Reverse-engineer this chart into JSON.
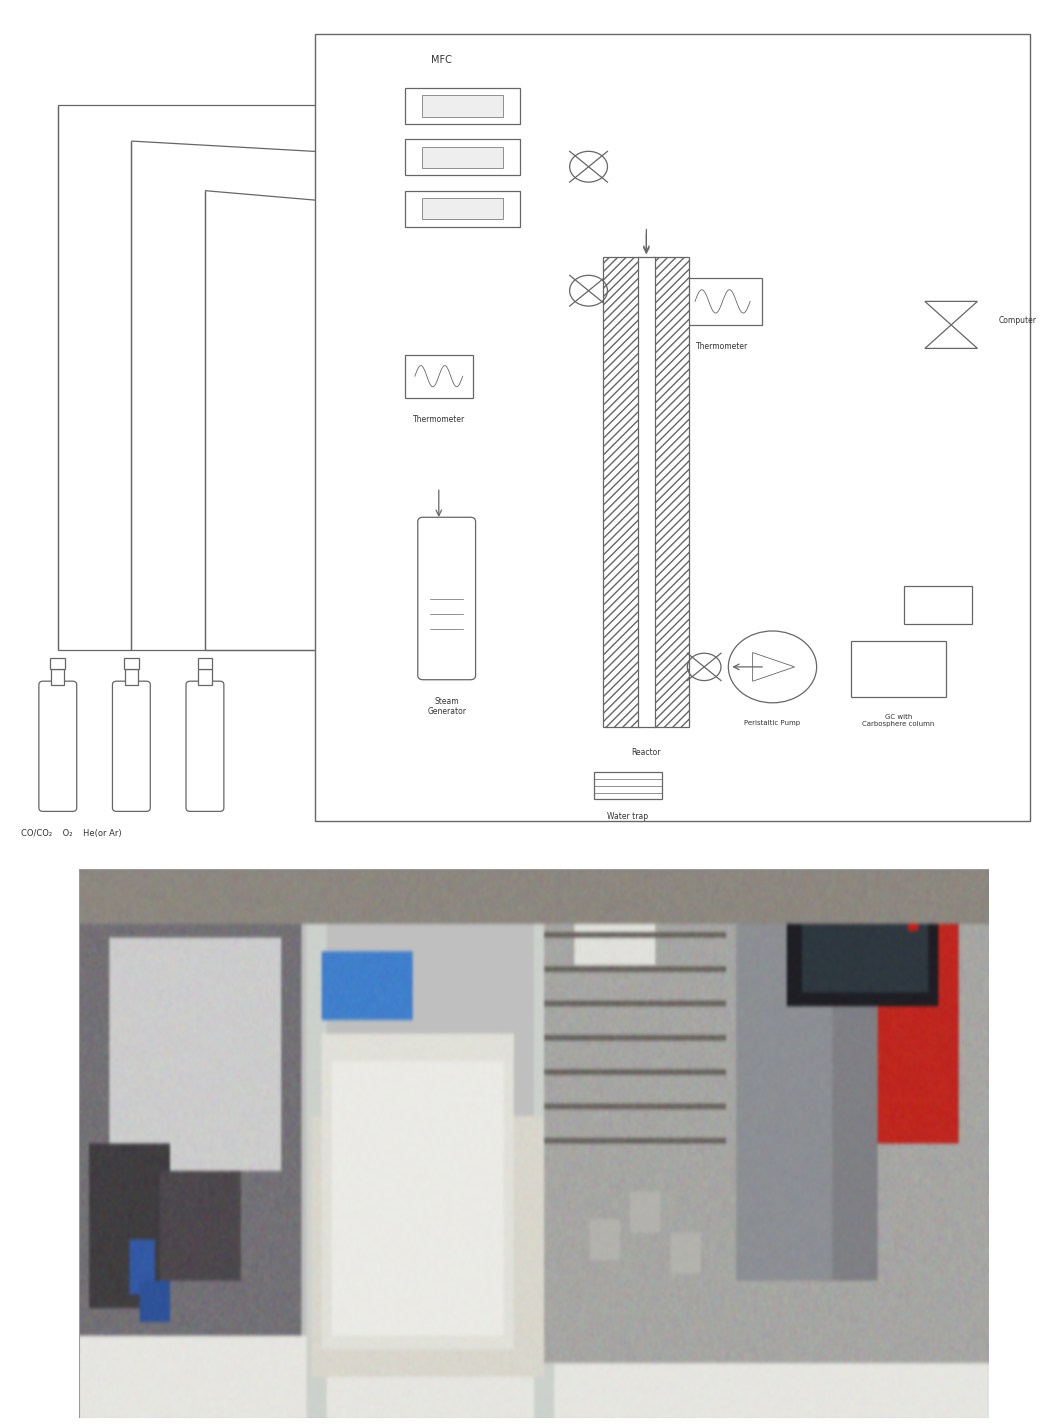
{
  "bg_color": "#ffffff",
  "line_color": "#666666",
  "mfc_label": "MFC",
  "gas_bottles_label": "CO/CO₂    O₂    He(or Ar)",
  "thermometer1_label": "Thermometer",
  "thermometer2_label": "Thermometer",
  "steam_gen_label": "Steam\nGenerator",
  "reactor_label": "Reactor",
  "water_trap_label": "Water trap",
  "peristaltic_label": "Peristaltic Pump",
  "gc_label": "GC with\nCarbosphere column",
  "computer_label": "Computer"
}
